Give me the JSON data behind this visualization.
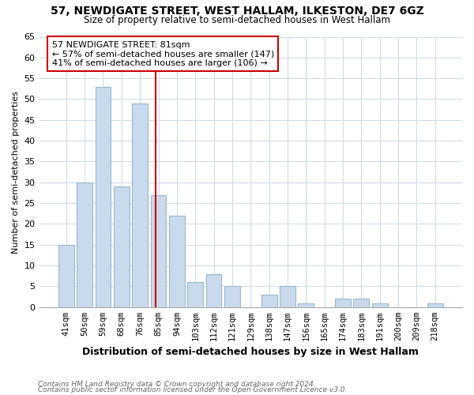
{
  "title1": "57, NEWDIGATE STREET, WEST HALLAM, ILKESTON, DE7 6GZ",
  "title2": "Size of property relative to semi-detached houses in West Hallam",
  "xlabel": "Distribution of semi-detached houses by size in West Hallam",
  "ylabel": "Number of semi-detached properties",
  "footer1": "Contains HM Land Registry data © Crown copyright and database right 2024.",
  "footer2": "Contains public sector information licensed under the Open Government Licence v3.0.",
  "bar_labels": [
    "41sqm",
    "50sqm",
    "59sqm",
    "68sqm",
    "76sqm",
    "85sqm",
    "94sqm",
    "103sqm",
    "112sqm",
    "121sqm",
    "129sqm",
    "138sqm",
    "147sqm",
    "156sqm",
    "165sqm",
    "174sqm",
    "183sqm",
    "191sqm",
    "200sqm",
    "209sqm",
    "218sqm"
  ],
  "bar_values": [
    15,
    30,
    53,
    29,
    49,
    27,
    22,
    6,
    8,
    5,
    0,
    3,
    5,
    1,
    0,
    2,
    2,
    1,
    0,
    0,
    1
  ],
  "bar_color": "#c8daeb",
  "bar_edge_color": "#9ab8d0",
  "ref_line_color": "#cc0000",
  "annotation_title": "57 NEWDIGATE STREET: 81sqm",
  "annotation_line1": "← 57% of semi-detached houses are smaller (147)",
  "annotation_line2": "41% of semi-detached houses are larger (106) →",
  "annotation_box_facecolor": "#ffffff",
  "annotation_box_edgecolor": "#cc0000",
  "ylim": [
    0,
    65
  ],
  "yticks": [
    0,
    5,
    10,
    15,
    20,
    25,
    30,
    35,
    40,
    45,
    50,
    55,
    60,
    65
  ],
  "background_color": "#ffffff",
  "plot_background": "#ffffff",
  "grid_color": "#d0dce8"
}
